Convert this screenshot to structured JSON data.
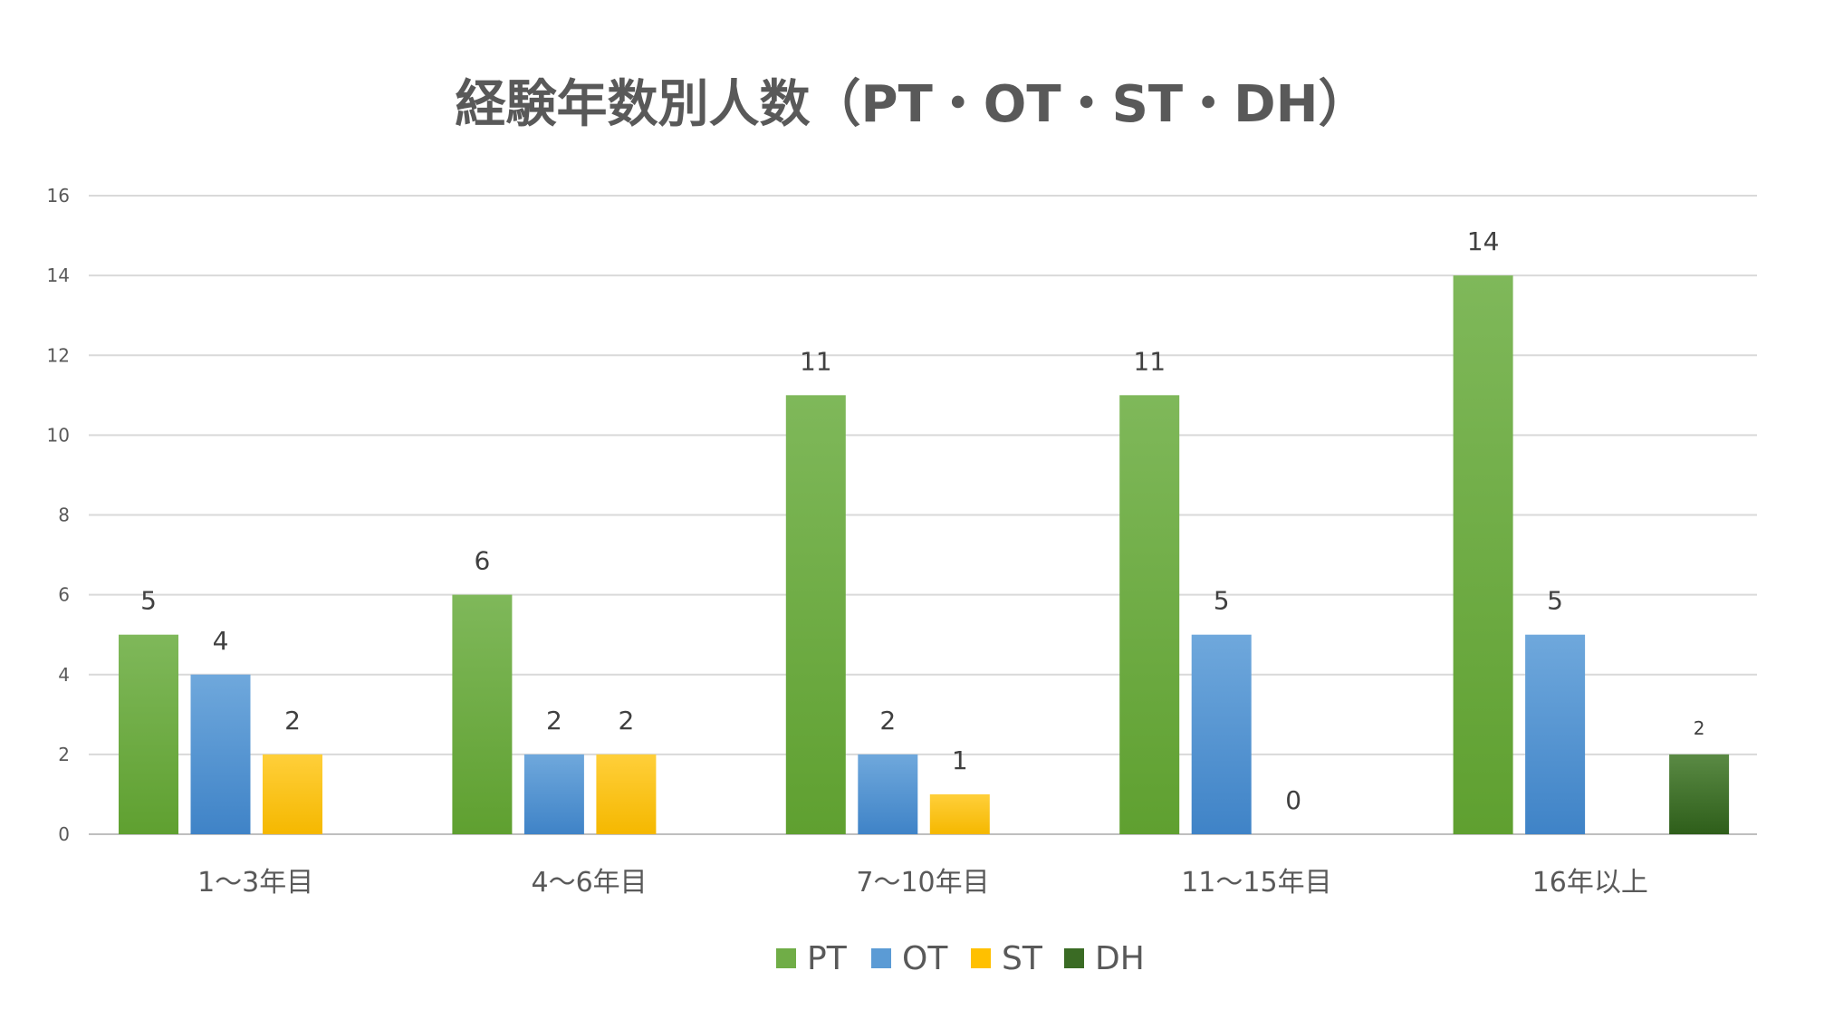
{
  "chart_data": {
    "type": "bar",
    "title": "経験年数別人数（PT・OT・ST・DH）",
    "xlabel": "",
    "ylabel": "",
    "ylim": [
      0,
      16
    ],
    "yticks": [
      0,
      2,
      4,
      6,
      8,
      10,
      12,
      14,
      16
    ],
    "grid": true,
    "legend_position": "bottom",
    "categories": [
      "1〜3年目",
      "4〜6年目",
      "7〜10年目",
      "11〜15年目",
      "16年以上"
    ],
    "series": [
      {
        "name": "PT",
        "color": "#70ad47",
        "color_top": "#7fb85a",
        "color_bottom": "#5fa030",
        "values": [
          5,
          6,
          11,
          11,
          14
        ],
        "labels": [
          "5",
          "6",
          "11",
          "11",
          "14"
        ]
      },
      {
        "name": "OT",
        "color": "#5b9bd5",
        "color_top": "#6fa8dc",
        "color_bottom": "#3f83c7",
        "values": [
          4,
          2,
          2,
          5,
          5
        ],
        "labels": [
          "4",
          "2",
          "2",
          "5",
          "5"
        ]
      },
      {
        "name": "ST",
        "color": "#ffc000",
        "color_top": "#ffcf3a",
        "color_bottom": "#f5b800",
        "values": [
          2,
          2,
          1,
          0,
          null
        ],
        "labels": [
          "2",
          "2",
          "1",
          "0",
          ""
        ]
      },
      {
        "name": "DH",
        "color": "#3a6b24",
        "color_top": "#5a8a44",
        "color_bottom": "#2e5e1a",
        "values": [
          null,
          null,
          null,
          null,
          2
        ],
        "labels": [
          "",
          "",
          "",
          "",
          "2"
        ]
      }
    ]
  }
}
